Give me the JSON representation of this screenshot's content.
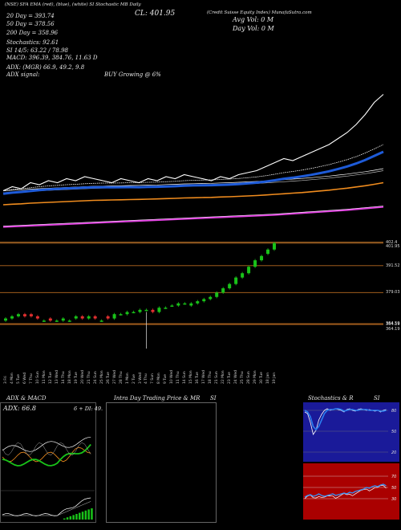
{
  "header": {
    "symbol_line": "(NSE) SFA  EMA (red), (blue), (white)  SI  Stochastic  MB  Daily",
    "close_label": "CL: 401.95",
    "credit": "(Credit Suisse  Equity Index)  MunafaSutra.com",
    "vol_label": "Avg Vol: 0  M",
    "day_vol_label": "Day Vol: 0   M",
    "ema20": "20  Day  =  393.74",
    "ema50": "50  Day  =  378.56",
    "ema200": "200  Day  =  358.96",
    "stochastics": "Stochastics: 92.61",
    "si_line": "SI  14/5: 63.22  /  78.98",
    "macd_line": "MACD:  396.39,  384.76,  11.63 D",
    "adx_line": "ADX:                    (MGR) 66.9,  49.2,  9.8",
    "adx_signal": "ADX  signal:",
    "buy_signal": "BUY Growing @ 6%"
  },
  "panels": {
    "adx_title": "ADX  & MACD",
    "adx_value": "ADX: 66.8",
    "adx_right": "6   + DI: 49.",
    "intraday_title": "Intra  Day Trading Price   & MR",
    "intraday_si": "SI",
    "stoch_title": "Stochastics & R",
    "stoch_si": "SI"
  },
  "stoch_ticks": [
    "80",
    "50",
    "20"
  ],
  "rsi_ticks": [
    "70",
    "50",
    "30"
  ],
  "stoch_right_label": "SI",
  "colors": {
    "ema_short": "#ffffff",
    "ema_mid": "#1e5bd8",
    "ema_long": "#f08c1e",
    "ema_200": "#e040e0",
    "up_candle": "#19c219",
    "down_candle": "#e23030",
    "level_line": "#b8651e",
    "stoch_bg": "#1a1a99",
    "rsi_bg": "#aa0000"
  },
  "price_levels": [
    "402.4",
    "401.95",
    "391.52",
    "379.03",
    "364.59",
    "364.19",
    "364.19"
  ],
  "chart_data": [
    {
      "type": "line",
      "title": "",
      "series": [
        {
          "name": "price",
          "values": [
            80,
            82,
            81,
            84,
            83,
            85,
            84,
            86,
            85,
            87,
            86,
            85,
            84,
            86,
            85,
            84,
            86,
            85,
            87,
            86,
            88,
            87,
            86,
            85,
            87,
            86,
            88,
            89,
            90,
            92,
            94,
            96,
            95,
            97,
            99,
            101,
            103,
            106,
            109,
            113,
            118,
            124,
            128
          ]
        },
        {
          "name": "20 Day",
          "values": [
            80,
            80.6,
            81,
            81.5,
            82,
            82.4,
            82.7,
            83,
            83.2,
            83.5,
            83.7,
            83.8,
            83.8,
            83.9,
            84,
            84,
            84.2,
            84.3,
            84.5,
            84.7,
            85,
            85.2,
            85.3,
            85.4,
            85.6,
            85.8,
            86.1,
            86.5,
            86.9,
            87.5,
            88.2,
            89,
            89.6,
            90.3,
            91.1,
            92,
            93,
            94.2,
            95.5,
            97,
            98.8,
            100.9,
            103
          ]
        },
        {
          "name": "50 Day",
          "values": [
            79,
            79.3,
            79.5,
            79.8,
            80,
            80.2,
            80.4,
            80.6,
            80.8,
            81,
            81.2,
            81.3,
            81.4,
            81.5,
            81.6,
            81.7,
            81.8,
            81.9,
            82.1,
            82.2,
            82.4,
            82.5,
            82.6,
            82.7,
            82.9,
            83,
            83.2,
            83.4,
            83.6,
            83.9,
            84.2,
            84.5,
            84.8,
            85.1,
            85.5,
            85.9,
            86.3,
            86.8,
            87.3,
            87.9,
            88.5,
            89.2,
            90
          ]
        },
        {
          "name": "200 Day",
          "values": [
            62,
            62.2,
            62.4,
            62.6,
            62.8,
            63,
            63.2,
            63.4,
            63.6,
            63.8,
            64,
            64.2,
            64.4,
            64.6,
            64.8,
            65,
            65.2,
            65.4,
            65.6,
            65.8,
            66,
            66.2,
            66.4,
            66.6,
            66.8,
            67,
            67.2,
            67.4,
            67.6,
            67.8,
            68,
            68.3,
            68.6,
            68.9,
            69.2,
            69.5,
            69.8,
            70.1,
            70.4,
            70.8,
            71.2,
            71.6,
            72
          ]
        }
      ]
    },
    {
      "type": "bar",
      "title": "",
      "categories": [
        "3 Fri",
        "4 Mon",
        "5 Tue",
        "6 Wed",
        "7 Thu",
        "10 Sun",
        "11 Mon",
        "12 Tue",
        "13 Wed",
        "14 Thu",
        "18 Mon",
        "19 Tue",
        "20 Wed",
        "21 Thu",
        "24 Sun",
        "25 Mon",
        "26 Tue",
        "27 Wed",
        "28 Thu",
        "1 Mon",
        "2 Tue",
        "3 Wed",
        "4 Thu",
        "7 Sun",
        "8 Mon",
        "9 Tue",
        "10 Wed",
        "11 Thu",
        "14 Sun",
        "15 Mon",
        "16 Tue",
        "17 Wed",
        "18 Thu",
        "21 Sun",
        "22 Mon",
        "23 Tue",
        "24 Wed",
        "25 Thu",
        "28 Sun",
        "29 Mon",
        "30 Tue",
        "18 Jan",
        "19 Jan"
      ],
      "series": [
        {
          "name": "open",
          "values": [
            366,
            367,
            368,
            369,
            369,
            368,
            366,
            367,
            366,
            366,
            366,
            367,
            368,
            367,
            368,
            366,
            368,
            367,
            369,
            369,
            370,
            370,
            371,
            371,
            370,
            372,
            373,
            373,
            374,
            373,
            374,
            375,
            376,
            377,
            379,
            381,
            383,
            386,
            388,
            391,
            394,
            397,
            399
          ]
        },
        {
          "name": "close",
          "values": [
            367,
            368,
            369,
            368,
            368,
            367,
            366,
            366,
            366,
            367,
            366,
            368,
            367,
            368,
            367,
            366,
            367,
            369,
            369,
            370,
            370,
            371,
            371,
            370,
            372,
            372,
            373,
            374,
            374,
            374,
            375,
            376,
            377,
            379,
            381,
            383,
            386,
            388,
            391,
            394,
            396,
            399,
            402
          ]
        }
      ]
    }
  ]
}
